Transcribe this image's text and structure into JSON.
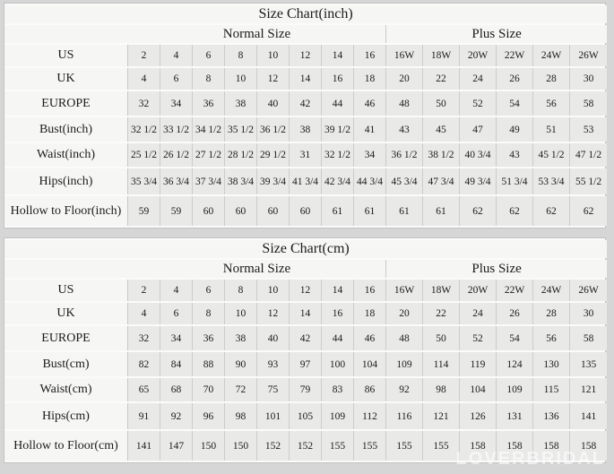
{
  "watermark": "LOVERBRIDAL",
  "chart_data": [
    {
      "type": "table",
      "title": "Size Chart(inch)",
      "column_groups": [
        {
          "label": "Normal Size",
          "span": 8
        },
        {
          "label": "Plus Size",
          "span": 6
        }
      ],
      "rows": [
        {
          "label": "US",
          "normal": [
            "2",
            "4",
            "6",
            "8",
            "10",
            "12",
            "14",
            "16"
          ],
          "plus": [
            "16W",
            "18W",
            "20W",
            "22W",
            "24W",
            "26W"
          ]
        },
        {
          "label": "UK",
          "normal": [
            "4",
            "6",
            "8",
            "10",
            "12",
            "14",
            "16",
            "18"
          ],
          "plus": [
            "20",
            "22",
            "24",
            "26",
            "28",
            "30"
          ]
        },
        {
          "label": "EUROPE",
          "normal": [
            "32",
            "34",
            "36",
            "38",
            "40",
            "42",
            "44",
            "46"
          ],
          "plus": [
            "48",
            "50",
            "52",
            "54",
            "56",
            "58"
          ]
        },
        {
          "label": "Bust(inch)",
          "normal": [
            "32 1/2",
            "33 1/2",
            "34 1/2",
            "35 1/2",
            "36 1/2",
            "38",
            "39 1/2",
            "41"
          ],
          "plus": [
            "43",
            "45",
            "47",
            "49",
            "51",
            "53"
          ]
        },
        {
          "label": "Waist(inch)",
          "normal": [
            "25 1/2",
            "26 1/2",
            "27 1/2",
            "28 1/2",
            "29 1/2",
            "31",
            "32 1/2",
            "34"
          ],
          "plus": [
            "36 1/2",
            "38 1/2",
            "40 3/4",
            "43",
            "45 1/2",
            "47 1/2"
          ]
        },
        {
          "label": "Hips(inch)",
          "normal": [
            "35 3/4",
            "36 3/4",
            "37 3/4",
            "38 3/4",
            "39 3/4",
            "41 3/4",
            "42 3/4",
            "44 3/4"
          ],
          "plus": [
            "45 3/4",
            "47 3/4",
            "49 3/4",
            "51 3/4",
            "53 3/4",
            "55 1/2"
          ]
        },
        {
          "label": "Hollow to Floor(inch)",
          "normal": [
            "59",
            "59",
            "60",
            "60",
            "60",
            "60",
            "61",
            "61"
          ],
          "plus": [
            "61",
            "61",
            "62",
            "62",
            "62",
            "62"
          ]
        }
      ]
    },
    {
      "type": "table",
      "title": "Size Chart(cm)",
      "column_groups": [
        {
          "label": "Normal Size",
          "span": 8
        },
        {
          "label": "Plus Size",
          "span": 6
        }
      ],
      "rows": [
        {
          "label": "US",
          "normal": [
            "2",
            "4",
            "6",
            "8",
            "10",
            "12",
            "14",
            "16"
          ],
          "plus": [
            "16W",
            "18W",
            "20W",
            "22W",
            "24W",
            "26W"
          ]
        },
        {
          "label": "UK",
          "normal": [
            "4",
            "6",
            "8",
            "10",
            "12",
            "14",
            "16",
            "18"
          ],
          "plus": [
            "20",
            "22",
            "24",
            "26",
            "28",
            "30"
          ]
        },
        {
          "label": "EUROPE",
          "normal": [
            "32",
            "34",
            "36",
            "38",
            "40",
            "42",
            "44",
            "46"
          ],
          "plus": [
            "48",
            "50",
            "52",
            "54",
            "56",
            "58"
          ]
        },
        {
          "label": "Bust(cm)",
          "normal": [
            "82",
            "84",
            "88",
            "90",
            "93",
            "97",
            "100",
            "104"
          ],
          "plus": [
            "109",
            "114",
            "119",
            "124",
            "130",
            "135"
          ]
        },
        {
          "label": "Waist(cm)",
          "normal": [
            "65",
            "68",
            "70",
            "72",
            "75",
            "79",
            "83",
            "86"
          ],
          "plus": [
            "92",
            "98",
            "104",
            "109",
            "115",
            "121"
          ]
        },
        {
          "label": "Hips(cm)",
          "normal": [
            "91",
            "92",
            "96",
            "98",
            "101",
            "105",
            "109",
            "112"
          ],
          "plus": [
            "116",
            "121",
            "126",
            "131",
            "136",
            "141"
          ]
        },
        {
          "label": "Hollow to Floor(cm)",
          "normal": [
            "141",
            "147",
            "150",
            "150",
            "152",
            "152",
            "155",
            "155"
          ],
          "plus": [
            "155",
            "155",
            "158",
            "158",
            "158",
            "158"
          ]
        }
      ]
    }
  ]
}
